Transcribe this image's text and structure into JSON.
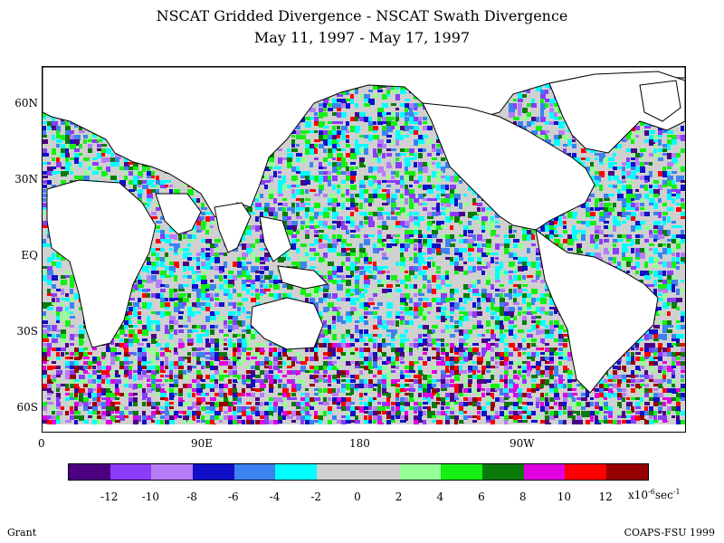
{
  "title_line1": "NSCAT Gridded Divergence - NSCAT Swath Divergence",
  "title_line2": "May 11, 1997 - May 17, 1997",
  "lat_labels": [
    "60N",
    "30N",
    "EQ",
    "30S",
    "60S"
  ],
  "lon_labels": [
    "0",
    "90E",
    "180",
    "90W"
  ],
  "colorbar": {
    "colors": [
      "#4b0082",
      "#8a3cf7",
      "#b67cf6",
      "#1010c8",
      "#3c82f0",
      "#00ffff",
      "#d0d0d0",
      "#d0d0d0",
      "#96ff96",
      "#14f014",
      "#0a7a0a",
      "#e000e0",
      "#ff0000",
      "#960000"
    ],
    "ticks": [
      "-12",
      "-10",
      "-8",
      "-6",
      "-4",
      "-2",
      "0",
      "2",
      "4",
      "6",
      "8",
      "10",
      "12"
    ],
    "units_base": "x10",
    "units_exp1": "-6",
    "units_mid": "sec",
    "units_exp2": "-1"
  },
  "footer_left": "Grant",
  "footer_right": "COAPS-FSU 1999"
}
